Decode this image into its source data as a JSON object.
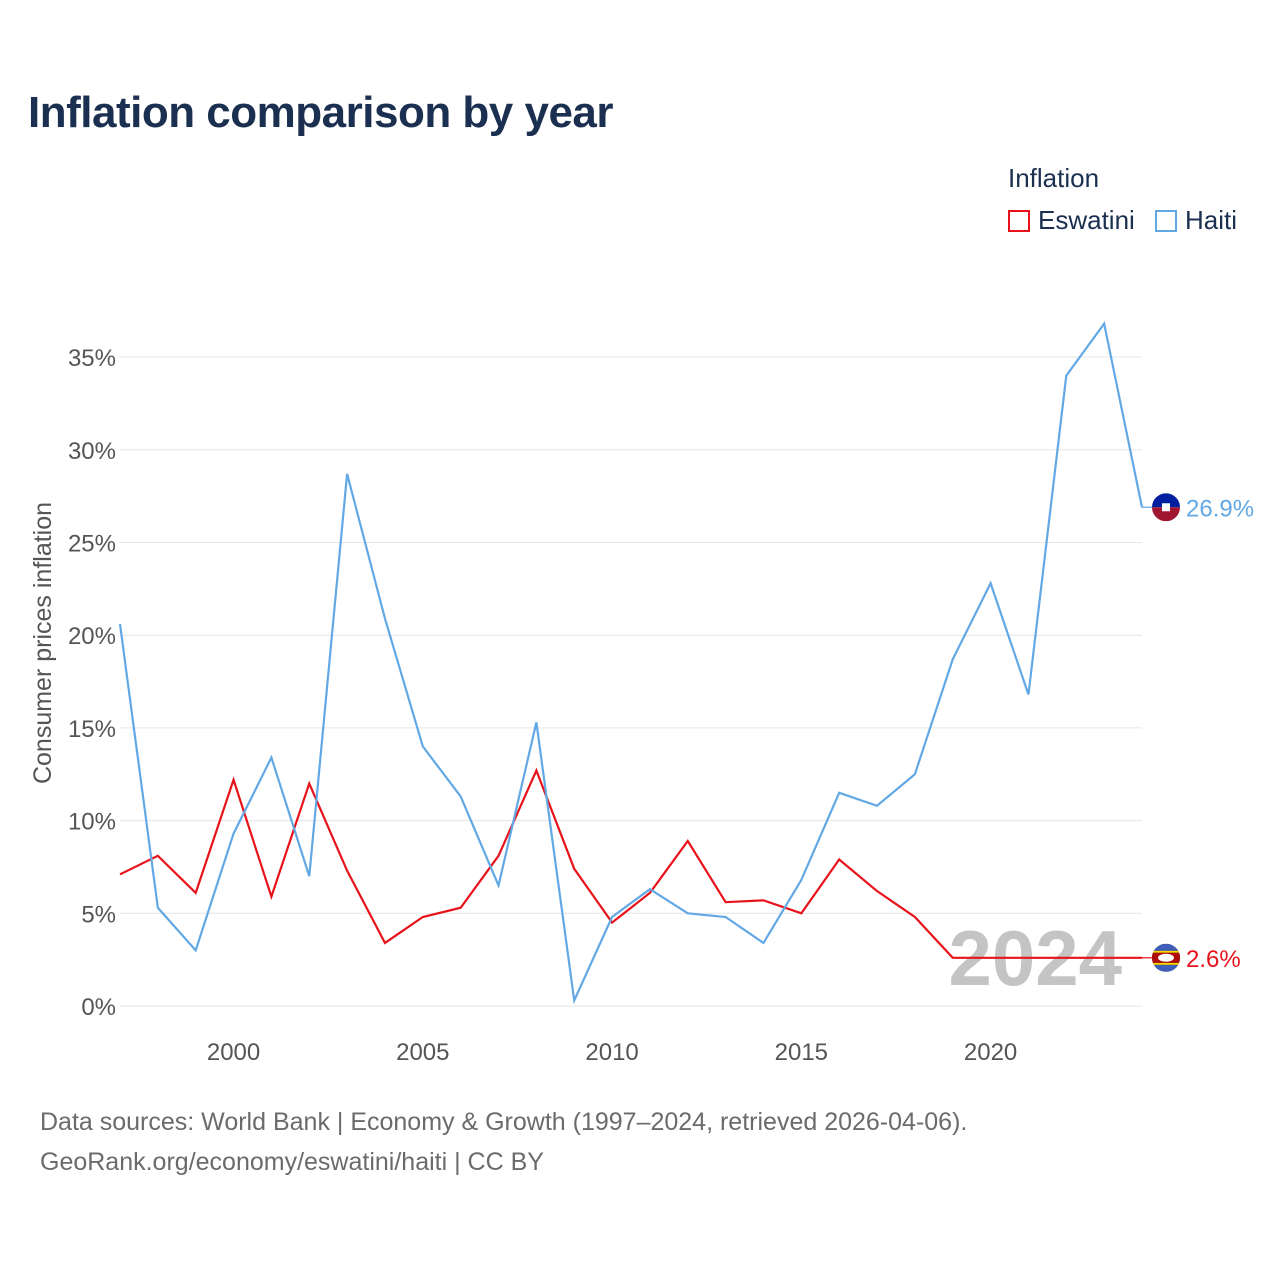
{
  "title": "Inflation comparison by year",
  "legend": {
    "title": "Inflation",
    "items": [
      {
        "label": "Eswatini",
        "color": "#e8121b"
      },
      {
        "label": "Haiti",
        "color": "#62a8e5"
      }
    ]
  },
  "chart_data": {
    "type": "line",
    "title": "Inflation comparison by year",
    "xlabel": "",
    "ylabel": "Consumer prices inflation",
    "xlim": [
      1997,
      2024
    ],
    "ylim": [
      0,
      37
    ],
    "x": [
      1997,
      1998,
      1999,
      2000,
      2001,
      2002,
      2003,
      2004,
      2005,
      2006,
      2007,
      2008,
      2009,
      2010,
      2011,
      2012,
      2013,
      2014,
      2015,
      2016,
      2017,
      2018,
      2019,
      2020,
      2021,
      2022,
      2023,
      2024
    ],
    "x_ticks": [
      2000,
      2005,
      2010,
      2015,
      2020
    ],
    "y_ticks": [
      0,
      5,
      10,
      15,
      20,
      25,
      30,
      35
    ],
    "y_tick_labels": [
      "0%",
      "5%",
      "10%",
      "15%",
      "20%",
      "25%",
      "30%",
      "35%"
    ],
    "grid": true,
    "series": [
      {
        "name": "Eswatini",
        "color": "#e8121b",
        "values": [
          7.1,
          8.1,
          6.1,
          12.2,
          5.9,
          12.0,
          7.3,
          3.4,
          4.8,
          5.3,
          8.1,
          12.7,
          7.4,
          4.5,
          6.1,
          8.9,
          5.6,
          5.7,
          5.0,
          7.9,
          6.2,
          4.8,
          2.6,
          2.6,
          2.6,
          2.6,
          2.6,
          2.6
        ],
        "end_label": "2.6%"
      },
      {
        "name": "Haiti",
        "color": "#62a8e5",
        "values": [
          20.6,
          5.3,
          3.0,
          9.3,
          13.4,
          7.0,
          28.7,
          20.9,
          14.0,
          11.3,
          6.5,
          15.3,
          0.3,
          4.8,
          6.3,
          5.0,
          4.8,
          3.4,
          6.8,
          11.5,
          10.8,
          12.5,
          18.7,
          22.8,
          16.8,
          34.0,
          36.8,
          26.9
        ],
        "end_label": "26.9%"
      }
    ],
    "year_watermark": "2024"
  },
  "footer": {
    "source": "Data sources: World Bank | Economy & Growth (1997–2024, retrieved 2026-04-06).",
    "credit": "GeoRank.org/economy/eswatini/haiti | CC BY"
  }
}
